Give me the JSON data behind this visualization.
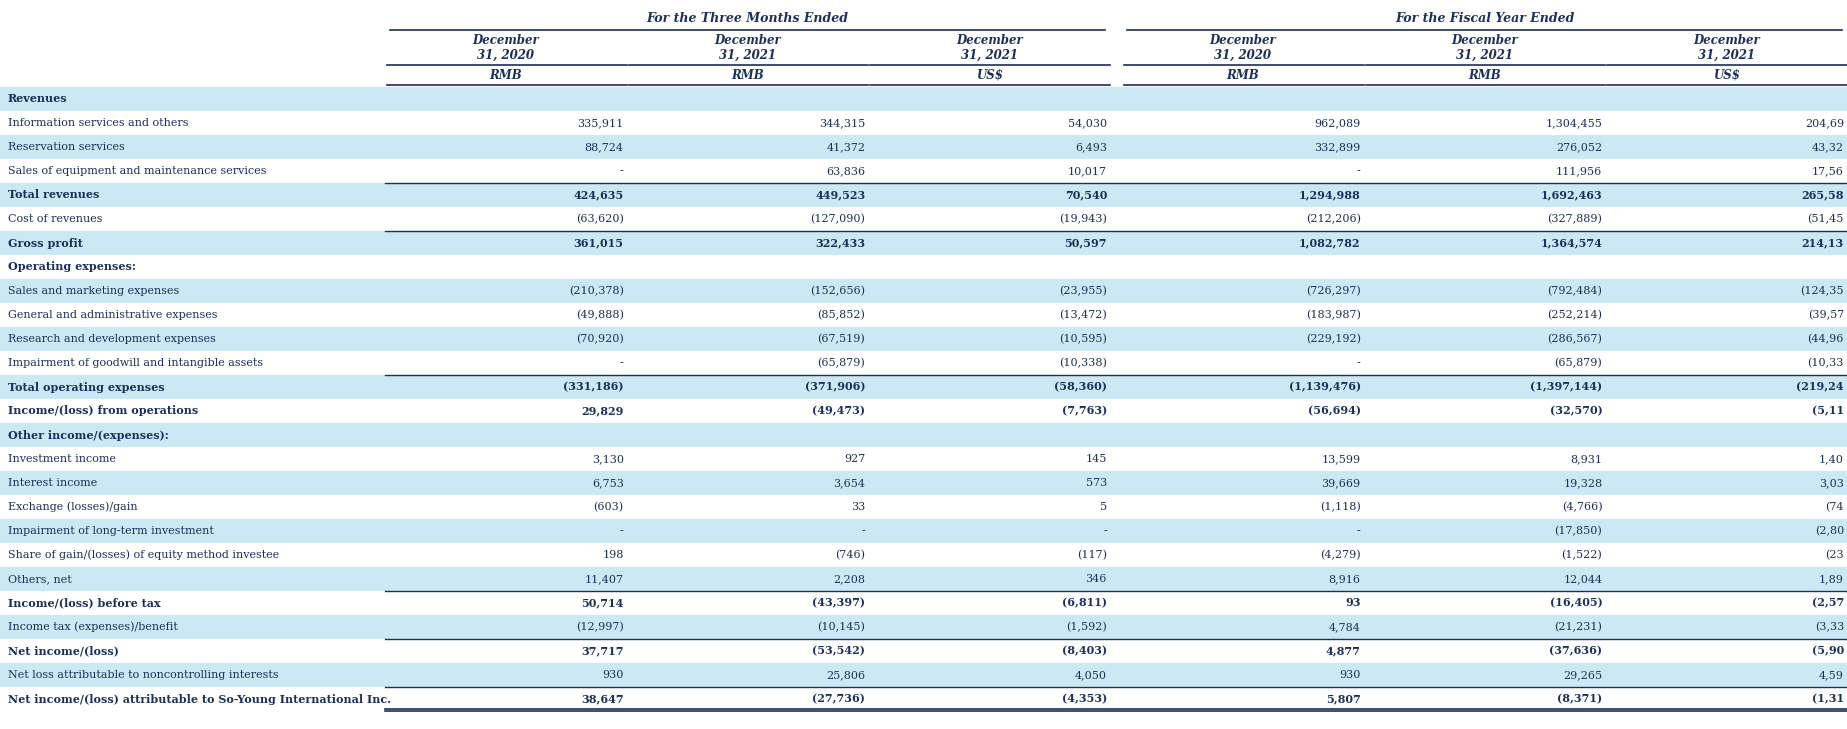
{
  "title_left": "For the Three Months Ended",
  "title_right": "For the Fiscal Year Ended",
  "col_headers_line1": [
    "December",
    "December",
    "December",
    "December",
    "December",
    "December"
  ],
  "col_headers_line2": [
    "31, 2020",
    "31, 2021",
    "31, 2021",
    "31, 2020",
    "31, 2021",
    "31, 2021"
  ],
  "col_headers_line3": [
    "RMB",
    "RMB",
    "US$",
    "RMB",
    "RMB",
    "US$"
  ],
  "rows": [
    {
      "label": "Revenues",
      "bold": true,
      "indent": 0,
      "values": [
        "",
        "",
        "",
        "",
        "",
        ""
      ],
      "section_header": true,
      "bg": "light"
    },
    {
      "label": "Information services and others",
      "bold": false,
      "indent": 0,
      "values": [
        "335,911",
        "344,315",
        "54,030",
        "962,089",
        "1,304,455",
        "204,69"
      ],
      "bg": "white"
    },
    {
      "label": "Reservation services",
      "bold": false,
      "indent": 0,
      "values": [
        "88,724",
        "41,372",
        "6,493",
        "332,899",
        "276,052",
        "43,32"
      ],
      "bg": "light"
    },
    {
      "label": "Sales of equipment and maintenance services",
      "bold": false,
      "indent": 0,
      "values": [
        "-",
        "63,836",
        "10,017",
        "-",
        "111,956",
        "17,56"
      ],
      "bg": "white"
    },
    {
      "label": "Total revenues",
      "bold": true,
      "indent": 0,
      "values": [
        "424,635",
        "449,523",
        "70,540",
        "1,294,988",
        "1,692,463",
        "265,58"
      ],
      "top_border": true,
      "bg": "light"
    },
    {
      "label": "Cost of revenues",
      "bold": false,
      "indent": 0,
      "values": [
        "(63,620)",
        "(127,090)",
        "(19,943)",
        "(212,206)",
        "(327,889)",
        "(51,45"
      ],
      "bg": "white"
    },
    {
      "label": "Gross profit",
      "bold": true,
      "indent": 0,
      "values": [
        "361,015",
        "322,433",
        "50,597",
        "1,082,782",
        "1,364,574",
        "214,13"
      ],
      "top_border": true,
      "bg": "light"
    },
    {
      "label": "Operating expenses:",
      "bold": true,
      "indent": 0,
      "values": [
        "",
        "",
        "",
        "",
        "",
        ""
      ],
      "section_header": true,
      "bg": "white"
    },
    {
      "label": "Sales and marketing expenses",
      "bold": false,
      "indent": 0,
      "values": [
        "(210,378)",
        "(152,656)",
        "(23,955)",
        "(726,297)",
        "(792,484)",
        "(124,35"
      ],
      "bg": "light"
    },
    {
      "label": "General and administrative expenses",
      "bold": false,
      "indent": 0,
      "values": [
        "(49,888)",
        "(85,852)",
        "(13,472)",
        "(183,987)",
        "(252,214)",
        "(39,57"
      ],
      "bg": "white"
    },
    {
      "label": "Research and development expenses",
      "bold": false,
      "indent": 0,
      "values": [
        "(70,920)",
        "(67,519)",
        "(10,595)",
        "(229,192)",
        "(286,567)",
        "(44,96"
      ],
      "bg": "light"
    },
    {
      "label": "Impairment of goodwill and intangible assets",
      "bold": false,
      "indent": 0,
      "values": [
        "-",
        "(65,879)",
        "(10,338)",
        "-",
        "(65,879)",
        "(10,33"
      ],
      "bg": "white"
    },
    {
      "label": "Total operating expenses",
      "bold": true,
      "indent": 0,
      "values": [
        "(331,186)",
        "(371,906)",
        "(58,360)",
        "(1,139,476)",
        "(1,397,144)",
        "(219,24"
      ],
      "top_border": true,
      "bg": "light"
    },
    {
      "label": "Income/(loss) from operations",
      "bold": true,
      "indent": 0,
      "values": [
        "29,829",
        "(49,473)",
        "(7,763)",
        "(56,694)",
        "(32,570)",
        "(5,11"
      ],
      "bg": "white"
    },
    {
      "label": "Other income/(expenses):",
      "bold": true,
      "indent": 0,
      "values": [
        "",
        "",
        "",
        "",
        "",
        ""
      ],
      "section_header": true,
      "bg": "light"
    },
    {
      "label": "Investment income",
      "bold": false,
      "indent": 0,
      "values": [
        "3,130",
        "927",
        "145",
        "13,599",
        "8,931",
        "1,40"
      ],
      "bg": "white"
    },
    {
      "label": "Interest income",
      "bold": false,
      "indent": 0,
      "values": [
        "6,753",
        "3,654",
        "573",
        "39,669",
        "19,328",
        "3,03"
      ],
      "bg": "light"
    },
    {
      "label": "Exchange (losses)/gain",
      "bold": false,
      "indent": 0,
      "values": [
        "(603)",
        "33",
        "5",
        "(1,118)",
        "(4,766)",
        "(74"
      ],
      "bg": "white"
    },
    {
      "label": "Impairment of long-term investment",
      "bold": false,
      "indent": 0,
      "values": [
        "-",
        "-",
        "-",
        "-",
        "(17,850)",
        "(2,80"
      ],
      "bg": "light"
    },
    {
      "label": "Share of gain/(losses) of equity method investee",
      "bold": false,
      "indent": 0,
      "values": [
        "198",
        "(746)",
        "(117)",
        "(4,279)",
        "(1,522)",
        "(23"
      ],
      "bg": "white"
    },
    {
      "label": "Others, net",
      "bold": false,
      "indent": 0,
      "values": [
        "11,407",
        "2,208",
        "346",
        "8,916",
        "12,044",
        "1,89"
      ],
      "bg": "light"
    },
    {
      "label": "Income/(loss) before tax",
      "bold": true,
      "indent": 0,
      "values": [
        "50,714",
        "(43,397)",
        "(6,811)",
        "93",
        "(16,405)",
        "(2,57"
      ],
      "top_border": true,
      "bg": "white"
    },
    {
      "label": "Income tax (expenses)/benefit",
      "bold": false,
      "indent": 0,
      "values": [
        "(12,997)",
        "(10,145)",
        "(1,592)",
        "4,784",
        "(21,231)",
        "(3,33"
      ],
      "bg": "light"
    },
    {
      "label": "Net income/(loss)",
      "bold": true,
      "indent": 0,
      "values": [
        "37,717",
        "(53,542)",
        "(8,403)",
        "4,877",
        "(37,636)",
        "(5,90"
      ],
      "top_border": true,
      "bg": "white"
    },
    {
      "label": "Net loss attributable to noncontrolling interests",
      "bold": false,
      "indent": 0,
      "values": [
        "930",
        "25,806",
        "4,050",
        "930",
        "29,265",
        "4,59"
      ],
      "bg": "light"
    },
    {
      "label": "Net income/(loss) attributable to So-Young International Inc.",
      "bold": true,
      "indent": 0,
      "values": [
        "38,647",
        "(27,736)",
        "(4,353)",
        "5,807",
        "(8,371)",
        "(1,31"
      ],
      "top_border": true,
      "bottom_border": true,
      "bg": "white"
    }
  ],
  "bg_color_light": "#cce8f4",
  "bg_color_white": "#ffffff",
  "text_color": "#1a2f5a",
  "border_color": "#1a2f5a",
  "font_size": 8.0,
  "header_font_size": 8.5,
  "group_header_font_size": 9.0
}
